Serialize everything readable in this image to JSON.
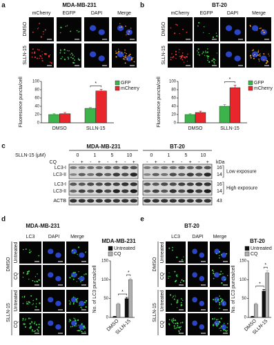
{
  "panel_a": {
    "label": "a",
    "title": "MDA-MB-231",
    "channels": [
      "mCherry",
      "EGFP",
      "DAPI",
      "Merge"
    ],
    "rows": [
      "DMSO",
      "SLLN-15"
    ],
    "chart": {
      "type": "bar",
      "ylabel": "Fluorescece puncta/cell",
      "categories": [
        "DMSO",
        "SLLN-15"
      ],
      "series": [
        {
          "name": "GFP",
          "color": "#3cb44b",
          "values": [
            20,
            35
          ],
          "errors": [
            2,
            2
          ]
        },
        {
          "name": "mCherry",
          "color": "#e8262b",
          "values": [
            22,
            77
          ],
          "errors": [
            3,
            4
          ]
        }
      ],
      "ylim": [
        0,
        100
      ],
      "yticks": [
        0,
        20,
        40,
        60,
        80,
        100
      ],
      "significance": [
        "*"
      ]
    }
  },
  "panel_b": {
    "label": "b",
    "title": "BT-20",
    "channels": [
      "mCherry",
      "EGFP",
      "DAPI",
      "Merge"
    ],
    "rows": [
      "DMSO",
      "SLLN-15"
    ],
    "chart": {
      "type": "bar",
      "ylabel": "Fluorescece puncta/cell",
      "categories": [
        "DMSO",
        "SLLN-15"
      ],
      "series": [
        {
          "name": "GFP",
          "color": "#3cb44b",
          "values": [
            20,
            40
          ],
          "errors": [
            2,
            4
          ]
        },
        {
          "name": "mCherry",
          "color": "#e8262b",
          "values": [
            25,
            85
          ],
          "errors": [
            3,
            6
          ]
        }
      ],
      "ylim": [
        0,
        100
      ],
      "yticks": [
        0,
        20,
        40,
        60,
        80,
        100
      ],
      "significance": [
        "*"
      ]
    }
  },
  "panel_c": {
    "label": "c",
    "treatment_label": "SLLN-15 (μM)",
    "cell_lines": [
      "MDA-MB-231",
      "BT-20"
    ],
    "doses": [
      0,
      1,
      5,
      10
    ],
    "cq_label": "CQ",
    "cq_states": [
      "-",
      "+"
    ],
    "bands": [
      "LC3-I",
      "LC3-II",
      "LC3-I",
      "LC3-II",
      "ACTB"
    ],
    "kda_label": "kDa",
    "kda": [
      16,
      14,
      16,
      14,
      43
    ],
    "exposures": [
      "Low exposure",
      "High exposure"
    ]
  },
  "panel_d": {
    "label": "d",
    "title": "MDA-MB-231",
    "channels": [
      "LC3",
      "DAPI",
      "Merge"
    ],
    "groups": [
      "DMSO",
      "SLLN-15"
    ],
    "conditions": [
      "Untreated",
      "CQ"
    ],
    "chart": {
      "type": "bar",
      "title": "MDA-MB-231",
      "ylabel": "No. of LC3 puncta/cell",
      "categories": [
        "DMSO",
        "SLLN-15"
      ],
      "series": [
        {
          "name": "Untreated",
          "color": "#111111",
          "values": [
            2,
            50
          ],
          "errors": [
            1,
            3
          ]
        },
        {
          "name": "CQ",
          "color": "#b0b0b0",
          "values": [
            35,
            100
          ],
          "errors": [
            3,
            4
          ]
        }
      ],
      "ylim": [
        0,
        150
      ],
      "yticks": [
        0,
        50,
        100,
        150
      ],
      "significance": [
        "*",
        "*"
      ]
    }
  },
  "panel_e": {
    "label": "e",
    "title": "BT-20",
    "channels": [
      "LC3",
      "DAPI",
      "Merge"
    ],
    "groups": [
      "DMSO",
      "SLLN-15"
    ],
    "conditions": [
      "Untreated",
      "CQ"
    ],
    "chart": {
      "type": "bar",
      "title": "BT-20",
      "ylabel": "No. of LC3 puncta/cell",
      "categories": [
        "DMSO",
        "SLLN-15"
      ],
      "series": [
        {
          "name": "Untreated",
          "color": "#111111",
          "values": [
            2,
            70
          ],
          "errors": [
            1,
            4
          ]
        },
        {
          "name": "CQ",
          "color": "#b0b0b0",
          "values": [
            35,
            118
          ],
          "errors": [
            3,
            6
          ]
        }
      ],
      "ylim": [
        0,
        150
      ],
      "yticks": [
        0,
        50,
        100,
        150
      ],
      "significance": [
        "*",
        "*"
      ]
    }
  }
}
